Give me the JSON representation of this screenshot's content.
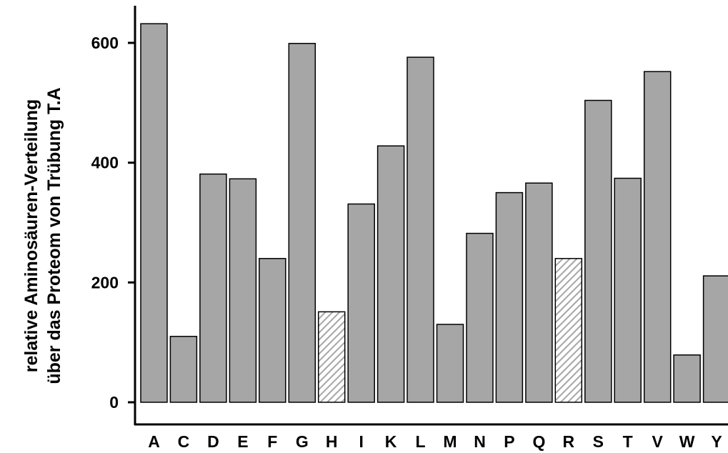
{
  "chart_data": {
    "type": "bar",
    "title": "",
    "xlabel": "",
    "ylabel_lines": [
      "relative Aminosäuren-Verteilung",
      "über das Proteom von Trübung T.A"
    ],
    "ylim": [
      0,
      640
    ],
    "yticks": [
      0,
      200,
      400,
      600
    ],
    "categories": [
      "A",
      "C",
      "D",
      "E",
      "F",
      "G",
      "H",
      "I",
      "K",
      "L",
      "M",
      "N",
      "P",
      "Q",
      "R",
      "S",
      "T",
      "V",
      "W",
      "Y"
    ],
    "values": [
      632,
      110,
      381,
      373,
      240,
      599,
      151,
      331,
      428,
      576,
      130,
      282,
      350,
      366,
      240,
      504,
      374,
      552,
      79,
      211
    ],
    "hatched_categories": [
      "H",
      "R"
    ],
    "grid": false,
    "legend": "none",
    "colors": {
      "bar": "#a6a6a6",
      "bar_edge": "#000000",
      "hatch": "#a6a6a6",
      "axis": "#000000"
    }
  }
}
